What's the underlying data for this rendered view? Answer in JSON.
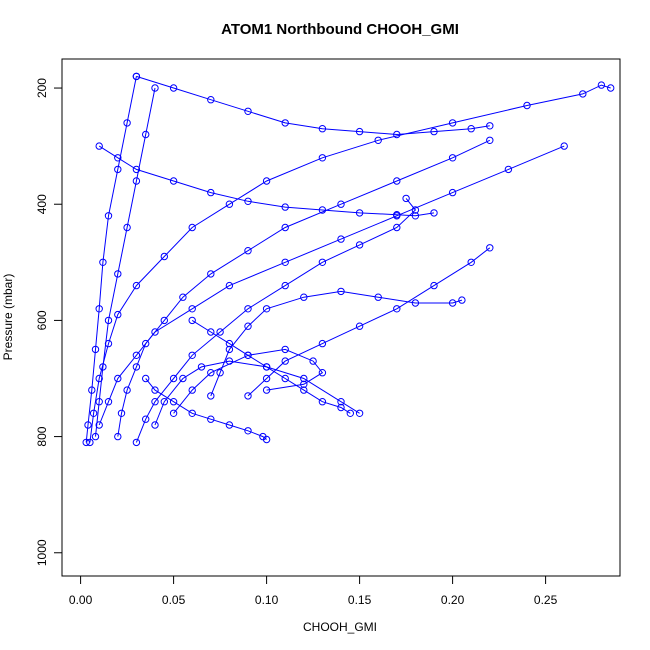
{
  "chart_data": {
    "type": "scatter",
    "title": "ATOM1 Northbound CHOOH_GMI",
    "xlabel": "CHOOH_GMI",
    "ylabel": "Pressure (mbar)",
    "xlim": [
      -0.01,
      0.29
    ],
    "ylim": [
      1040,
      150
    ],
    "y_reversed": true,
    "x_ticks": [
      "0.00",
      "0.05",
      "0.10",
      "0.15",
      "0.20",
      "0.25"
    ],
    "y_ticks": [
      "200",
      "400",
      "600",
      "800",
      "1000"
    ],
    "grid": false,
    "legend": "none",
    "marker": "open-circle",
    "color": "#0000ff",
    "series": [
      {
        "x": [
          0.005,
          0.007,
          0.01,
          0.015,
          0.02,
          0.03,
          0.045,
          0.06,
          0.08,
          0.1,
          0.13,
          0.16,
          0.2,
          0.24,
          0.27,
          0.28,
          0.285
        ],
        "y": [
          810,
          760,
          700,
          640,
          590,
          540,
          490,
          440,
          400,
          360,
          320,
          290,
          260,
          230,
          210,
          195,
          200
        ]
      },
      {
        "x": [
          0.02,
          0.022,
          0.025,
          0.03,
          0.035,
          0.045,
          0.055,
          0.07,
          0.09,
          0.11,
          0.14,
          0.17,
          0.2,
          0.22
        ],
        "y": [
          800,
          760,
          720,
          680,
          640,
          600,
          560,
          520,
          480,
          440,
          400,
          360,
          320,
          290
        ]
      },
      {
        "x": [
          0.03,
          0.035,
          0.04,
          0.05,
          0.06,
          0.075,
          0.09,
          0.11,
          0.13,
          0.15,
          0.17,
          0.18,
          0.175
        ],
        "y": [
          810,
          770,
          740,
          700,
          660,
          620,
          580,
          540,
          500,
          470,
          440,
          410,
          390
        ]
      },
      {
        "x": [
          0.01,
          0.015,
          0.02,
          0.03,
          0.04,
          0.06,
          0.08,
          0.11,
          0.14,
          0.17,
          0.2,
          0.23,
          0.26
        ],
        "y": [
          780,
          740,
          700,
          660,
          620,
          580,
          540,
          500,
          460,
          420,
          380,
          340,
          300
        ]
      },
      {
        "x": [
          0.04,
          0.045,
          0.055,
          0.065,
          0.08,
          0.1,
          0.12,
          0.14,
          0.15
        ],
        "y": [
          780,
          740,
          700,
          680,
          670,
          680,
          700,
          740,
          760
        ]
      },
      {
        "x": [
          0.05,
          0.06,
          0.07,
          0.09,
          0.11,
          0.125,
          0.13,
          0.12,
          0.1
        ],
        "y": [
          760,
          720,
          690,
          660,
          650,
          670,
          690,
          710,
          720
        ]
      },
      {
        "x": [
          0.07,
          0.075,
          0.08,
          0.09,
          0.1,
          0.12,
          0.14,
          0.16,
          0.18,
          0.2,
          0.205
        ],
        "y": [
          730,
          690,
          650,
          610,
          580,
          560,
          550,
          560,
          570,
          570,
          565
        ]
      },
      {
        "x": [
          0.09,
          0.1,
          0.11,
          0.13,
          0.15,
          0.17,
          0.19,
          0.21,
          0.22
        ],
        "y": [
          730,
          700,
          670,
          640,
          610,
          580,
          540,
          500,
          475
        ]
      },
      {
        "x": [
          0.01,
          0.02,
          0.03,
          0.05,
          0.07,
          0.09,
          0.11,
          0.13,
          0.15,
          0.17,
          0.18,
          0.19
        ],
        "y": [
          300,
          320,
          340,
          360,
          380,
          395,
          405,
          410,
          415,
          418,
          420,
          415
        ]
      },
      {
        "x": [
          0.03,
          0.05,
          0.07,
          0.09,
          0.11,
          0.13,
          0.15,
          0.17,
          0.19,
          0.21,
          0.22
        ],
        "y": [
          180,
          200,
          220,
          240,
          260,
          270,
          275,
          280,
          275,
          270,
          265
        ]
      },
      {
        "x": [
          0.06,
          0.07,
          0.08,
          0.09,
          0.1,
          0.11,
          0.12,
          0.13,
          0.14,
          0.145
        ],
        "y": [
          600,
          620,
          640,
          660,
          680,
          700,
          720,
          740,
          750,
          760
        ]
      },
      {
        "x": [
          0.003,
          0.004,
          0.006,
          0.008,
          0.01,
          0.012,
          0.015,
          0.02,
          0.025,
          0.03
        ],
        "y": [
          810,
          780,
          720,
          650,
          580,
          500,
          420,
          340,
          260,
          180
        ]
      },
      {
        "x": [
          0.008,
          0.01,
          0.012,
          0.015,
          0.02,
          0.025,
          0.03,
          0.035,
          0.04
        ],
        "y": [
          800,
          740,
          680,
          600,
          520,
          440,
          360,
          280,
          200
        ]
      },
      {
        "x": [
          0.1,
          0.098,
          0.09,
          0.08,
          0.07,
          0.06,
          0.05,
          0.04,
          0.035
        ],
        "y": [
          805,
          800,
          790,
          780,
          770,
          760,
          740,
          720,
          700
        ]
      }
    ]
  }
}
